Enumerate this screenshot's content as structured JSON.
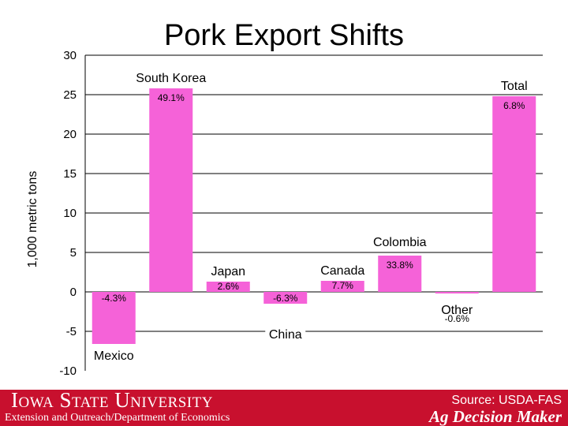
{
  "slide": {
    "title": "Pork Export Shifts"
  },
  "footer": {
    "university": "Iowa State University",
    "department": "Extension and Outreach/Department of Economics",
    "source": "Source: USDA-FAS",
    "brand": "Ag Decision Maker",
    "background_color": "#c8102e"
  },
  "chart_data": {
    "type": "bar",
    "ylabel": "1,000 metric tons",
    "ylim": [
      -10,
      30
    ],
    "yticks": [
      -10,
      -5,
      0,
      5,
      10,
      15,
      20,
      25,
      30
    ],
    "grid": true,
    "bar_color": "#f562d8",
    "categories": [
      "Mexico",
      "South Korea",
      "Japan",
      "China",
      "Canada",
      "Colombia",
      "Other",
      "Total"
    ],
    "values": [
      -6.6,
      25.8,
      1.3,
      -1.5,
      1.4,
      4.6,
      -0.2,
      24.8
    ],
    "pct_labels": [
      "-4.3%",
      "49.1%",
      "2.6%",
      "-6.3%",
      "7.7%",
      "33.8%",
      "-0.6%",
      "6.8%"
    ]
  }
}
